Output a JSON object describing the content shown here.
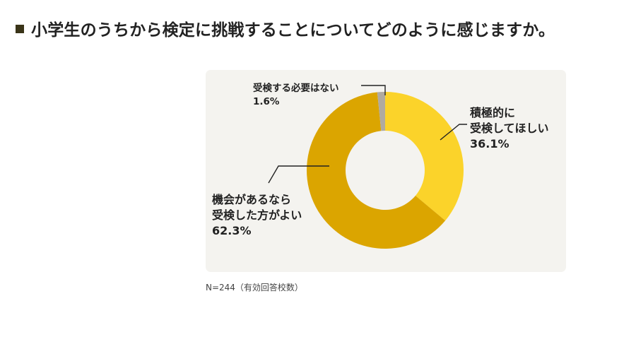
{
  "heading": {
    "title": "小学生のうちから検定に挑戦することについてどのように感じますか。"
  },
  "note": "N=244（有効回答校数）",
  "colors": {
    "panel_bg": "#f4f3ef",
    "slice_1": "#fbd32a",
    "slice_2": "#dba500",
    "slice_3": "#b0aaa0",
    "bullet": "#3a3418"
  },
  "chart_data": {
    "type": "pie",
    "donut": true,
    "categories": [
      "積極的に受検してほしい",
      "機会があるなら受検した方がよい",
      "受検する必要はない"
    ],
    "values": [
      36.1,
      62.3,
      1.6
    ],
    "labels": [
      {
        "lines": [
          "積極的に",
          "受検してほしい"
        ],
        "value": "36.1%"
      },
      {
        "lines": [
          "機会があるなら",
          "受検した方がよい"
        ],
        "value": "62.3%"
      },
      {
        "lines": [
          "受検する必要はない"
        ],
        "value": "1.6%"
      }
    ],
    "unit": "%"
  }
}
